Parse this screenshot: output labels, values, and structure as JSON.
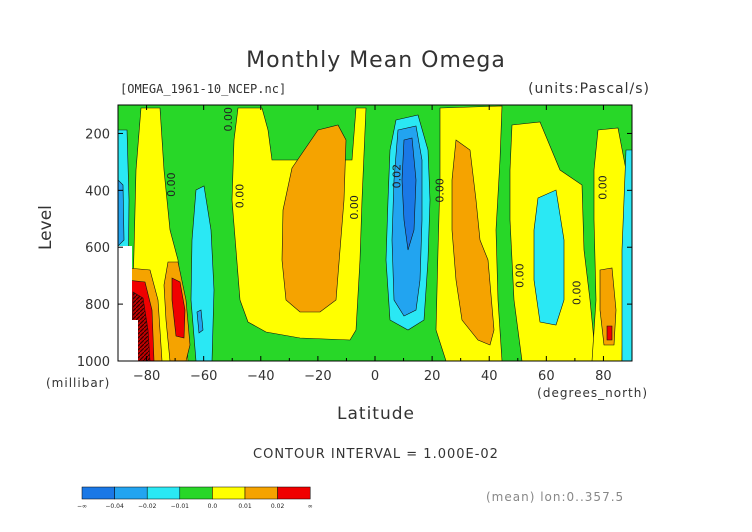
{
  "header": {
    "title": "Monthly Mean Omega",
    "file": "[OMEGA_1961-10_NCEP.nc]",
    "units": "(units:Pascal/s)"
  },
  "axes": {
    "ylabel": "Level",
    "yunit": "(millibar)",
    "xlabel": "Latitude",
    "xunit": "(degrees_north)"
  },
  "footer": {
    "contour_interval": "CONTOUR INTERVAL = 1.000E-02",
    "mean_note": "(mean) lon:0..357.5"
  },
  "colors": {
    "dark_blue": "#1a78e6",
    "blue": "#22a4f0",
    "cyan": "#2ae8f4",
    "green": "#28d728",
    "yellow": "#ffff00",
    "orange": "#f5a300",
    "red": "#f00000",
    "dark_red": "#8b0000"
  },
  "chart_data": {
    "type": "heatmap",
    "subtype": "filled-contour",
    "title": "Monthly Mean Omega",
    "xlabel": "Latitude",
    "ylabel": "Level",
    "xlim": [
      -90,
      90
    ],
    "ylim": [
      1000,
      100
    ],
    "x_ticks": [
      -80,
      -60,
      -40,
      -20,
      0,
      20,
      40,
      60,
      80
    ],
    "y_ticks": [
      200,
      400,
      600,
      800,
      1000
    ],
    "legend_levels": [
      "-∞",
      "-0.04",
      "-0.02",
      "-0.01",
      "0.0",
      "0.01",
      "0.02",
      "∞"
    ],
    "contour_labels": [
      {
        "text": "0.00",
        "lat": -70,
        "level": 380
      },
      {
        "text": "0.00",
        "lat": -50,
        "level": 150
      },
      {
        "text": "0.00",
        "lat": -46,
        "level": 420
      },
      {
        "text": "0.00",
        "lat": -6,
        "level": 460
      },
      {
        "text": "0.02",
        "lat": 9,
        "level": 350
      },
      {
        "text": "0.00",
        "lat": 24,
        "level": 400
      },
      {
        "text": "0.00",
        "lat": 52,
        "level": 700
      },
      {
        "text": "0.00",
        "lat": 72,
        "level": 760
      },
      {
        "text": "0.00",
        "lat": 81,
        "level": 390
      }
    ]
  }
}
